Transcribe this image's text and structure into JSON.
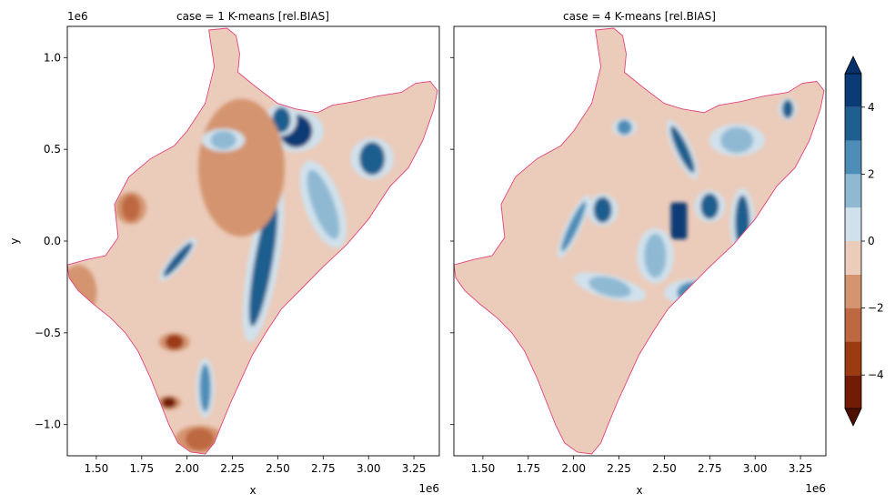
{
  "chart_data": {
    "type": "heatmap",
    "panels": [
      {
        "title": "case = 1 K-means [rel.BIAS]",
        "xlabel": "x",
        "ylabel": "y",
        "x_offset_label": "1e6",
        "y_offset_label": "1e6",
        "xlim": [
          1.34,
          3.39
        ],
        "ylim": [
          -1.17,
          1.17
        ],
        "x_ticks": [
          1.5,
          1.75,
          2.0,
          2.25,
          2.5,
          2.75,
          3.0,
          3.25
        ],
        "x_tick_labels": [
          "1.50",
          "1.75",
          "2.00",
          "2.25",
          "2.50",
          "2.75",
          "3.00",
          "3.25"
        ],
        "y_ticks": [
          1.0,
          0.5,
          0.0,
          -0.5,
          -1.0
        ],
        "y_tick_labels": [
          "1.0",
          "0.5",
          "0.0",
          "−0.5",
          "−1.0"
        ],
        "base_value": -0.5,
        "features": [
          {
            "shape": "ellipse",
            "cx": 2.42,
            "cy": -0.12,
            "rx": 0.05,
            "ry": 0.35,
            "angle": 10,
            "value": 3.5
          },
          {
            "shape": "ellipse",
            "cx": 2.6,
            "cy": 0.6,
            "rx": 0.09,
            "ry": 0.09,
            "angle": 0,
            "value": 4.5
          },
          {
            "shape": "ellipse",
            "cx": 2.52,
            "cy": 0.66,
            "rx": 0.05,
            "ry": 0.07,
            "angle": 0,
            "value": 3.5
          },
          {
            "shape": "ellipse",
            "cx": 3.02,
            "cy": 0.45,
            "rx": 0.07,
            "ry": 0.09,
            "angle": 0,
            "value": 3.5
          },
          {
            "shape": "ellipse",
            "cx": 1.95,
            "cy": -0.1,
            "rx": 0.025,
            "ry": 0.12,
            "angle": 40,
            "value": 3.0
          },
          {
            "shape": "ellipse",
            "cx": 2.1,
            "cy": -0.8,
            "rx": 0.03,
            "ry": 0.13,
            "angle": 0,
            "value": 2.5
          },
          {
            "shape": "ellipse",
            "cx": 1.69,
            "cy": 0.18,
            "rx": 0.05,
            "ry": 0.07,
            "angle": 0,
            "value": -2.5
          },
          {
            "shape": "ellipse",
            "cx": 1.4,
            "cy": -0.28,
            "rx": 0.06,
            "ry": 0.12,
            "angle": 0,
            "value": -2.0
          },
          {
            "shape": "ellipse",
            "cx": 1.93,
            "cy": -0.55,
            "rx": 0.05,
            "ry": 0.04,
            "angle": 0,
            "value": -3.5
          },
          {
            "shape": "ellipse",
            "cx": 1.9,
            "cy": -0.88,
            "rx": 0.04,
            "ry": 0.03,
            "angle": 0,
            "value": -4.5
          },
          {
            "shape": "ellipse",
            "cx": 2.07,
            "cy": -1.08,
            "rx": 0.08,
            "ry": 0.06,
            "angle": 0,
            "value": -2.5
          },
          {
            "shape": "ellipse",
            "cx": 2.3,
            "cy": 0.4,
            "rx": 0.14,
            "ry": 0.3,
            "angle": 0,
            "value": -1.5
          },
          {
            "shape": "ellipse",
            "cx": 2.75,
            "cy": 0.2,
            "rx": 0.06,
            "ry": 0.2,
            "angle": -20,
            "value": 1.5
          },
          {
            "shape": "ellipse",
            "cx": 2.2,
            "cy": 0.55,
            "rx": 0.07,
            "ry": 0.05,
            "angle": 0,
            "value": 1.5
          }
        ]
      },
      {
        "title": "case = 4 K-means [rel.BIAS]",
        "xlabel": "x",
        "x_offset_label": "1e6",
        "xlim": [
          1.34,
          3.39
        ],
        "ylim": [
          -1.17,
          1.17
        ],
        "x_ticks": [
          1.5,
          1.75,
          2.0,
          2.25,
          2.5,
          2.75,
          3.0,
          3.25
        ],
        "x_tick_labels": [
          "1.50",
          "1.75",
          "2.00",
          "2.25",
          "2.50",
          "2.75",
          "3.00",
          "3.25"
        ],
        "y_ticks": [
          1.0,
          0.5,
          0.0,
          -0.5,
          -1.0
        ],
        "base_value": -0.5,
        "features": [
          {
            "shape": "rect",
            "cx": 2.58,
            "cy": 0.11,
            "w": 0.09,
            "h": 0.2,
            "value": 4.5
          },
          {
            "shape": "ellipse",
            "cx": 2.93,
            "cy": 0.1,
            "rx": 0.04,
            "ry": 0.15,
            "angle": 0,
            "value": 3.5
          },
          {
            "shape": "ellipse",
            "cx": 2.75,
            "cy": 0.19,
            "rx": 0.05,
            "ry": 0.07,
            "angle": 0,
            "value": 3.5
          },
          {
            "shape": "ellipse",
            "cx": 2.16,
            "cy": 0.17,
            "rx": 0.05,
            "ry": 0.07,
            "angle": 0,
            "value": 3.0
          },
          {
            "shape": "ellipse",
            "cx": 2.6,
            "cy": 0.5,
            "rx": 0.03,
            "ry": 0.14,
            "angle": -25,
            "value": 3.0
          },
          {
            "shape": "ellipse",
            "cx": 2.0,
            "cy": 0.08,
            "rx": 0.025,
            "ry": 0.15,
            "angle": 25,
            "value": 2.5
          },
          {
            "shape": "ellipse",
            "cx": 2.67,
            "cy": -0.28,
            "rx": 0.1,
            "ry": 0.06,
            "angle": 0,
            "value": 2.5
          },
          {
            "shape": "ellipse",
            "cx": 3.18,
            "cy": 0.72,
            "rx": 0.03,
            "ry": 0.05,
            "angle": 0,
            "value": 3.0
          },
          {
            "shape": "ellipse",
            "cx": 2.28,
            "cy": 0.62,
            "rx": 0.04,
            "ry": 0.04,
            "angle": 0,
            "value": 2.5
          },
          {
            "shape": "ellipse",
            "cx": 2.45,
            "cy": -0.08,
            "rx": 0.06,
            "ry": 0.12,
            "angle": 0,
            "value": 1.5
          },
          {
            "shape": "ellipse",
            "cx": 2.2,
            "cy": -0.25,
            "rx": 0.12,
            "ry": 0.05,
            "angle": 15,
            "value": 1.5
          },
          {
            "shape": "ellipse",
            "cx": 2.9,
            "cy": 0.55,
            "rx": 0.09,
            "ry": 0.07,
            "angle": 0,
            "value": 1.5
          }
        ]
      }
    ],
    "colorbar": {
      "levels": [
        -5,
        -4,
        -3,
        -2,
        -1,
        0,
        1,
        2,
        3,
        4,
        5
      ],
      "extend": "both",
      "ticks": [
        4,
        2,
        0,
        -2,
        -4
      ],
      "tick_labels": [
        "4",
        "2",
        "0",
        "−2",
        "−4"
      ],
      "colors": [
        "#731c05",
        "#9c3a12",
        "#bd6841",
        "#d4946f",
        "#ebcbba",
        "#d0e1ec",
        "#8fb9d3",
        "#4e8db7",
        "#1f5f8f",
        "#0b3b74"
      ],
      "under_color": "#4d0f00",
      "over_color": "#08306b",
      "region_edge_color": "#e0457b"
    }
  }
}
